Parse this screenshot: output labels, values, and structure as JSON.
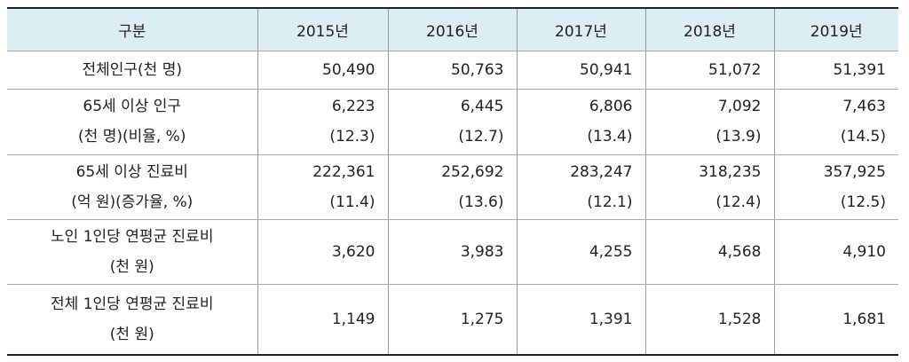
{
  "table": {
    "header": [
      "구분",
      "2015년",
      "2016년",
      "2017년",
      "2018년",
      "2019년"
    ],
    "rows": [
      {
        "label": [
          "전체인구(천 명)"
        ],
        "cells": [
          [
            "50,490"
          ],
          [
            "50,763"
          ],
          [
            "50,941"
          ],
          [
            "51,072"
          ],
          [
            "51,391"
          ]
        ]
      },
      {
        "label": [
          "65세 이상 인구",
          "(천 명)(비율, %)"
        ],
        "cells": [
          [
            "6,223",
            "(12.3)"
          ],
          [
            "6,445",
            "(12.7)"
          ],
          [
            "6,806",
            "(13.4)"
          ],
          [
            "7,092",
            "(13.9)"
          ],
          [
            "7,463",
            "(14.5)"
          ]
        ]
      },
      {
        "label": [
          "65세 이상 진료비",
          "(억 원)(증가율, %)"
        ],
        "cells": [
          [
            "222,361",
            "(11.4)"
          ],
          [
            "252,692",
            "(13.6)"
          ],
          [
            "283,247",
            "(12.1)"
          ],
          [
            "318,235",
            "(12.4)"
          ],
          [
            "357,925",
            "(12.5)"
          ]
        ]
      },
      {
        "label": [
          "노인 1인당 연평균 진료비",
          "(천 원)"
        ],
        "cells": [
          [
            "3,620"
          ],
          [
            "3,983"
          ],
          [
            "4,255"
          ],
          [
            "4,568"
          ],
          [
            "4,910"
          ]
        ]
      },
      {
        "label": [
          "전체 1인당 연평균 진료비",
          "(천 원)"
        ],
        "cells": [
          [
            "1,149"
          ],
          [
            "1,275"
          ],
          [
            "1,391"
          ],
          [
            "1,528"
          ],
          [
            "1,681"
          ]
        ]
      }
    ]
  }
}
